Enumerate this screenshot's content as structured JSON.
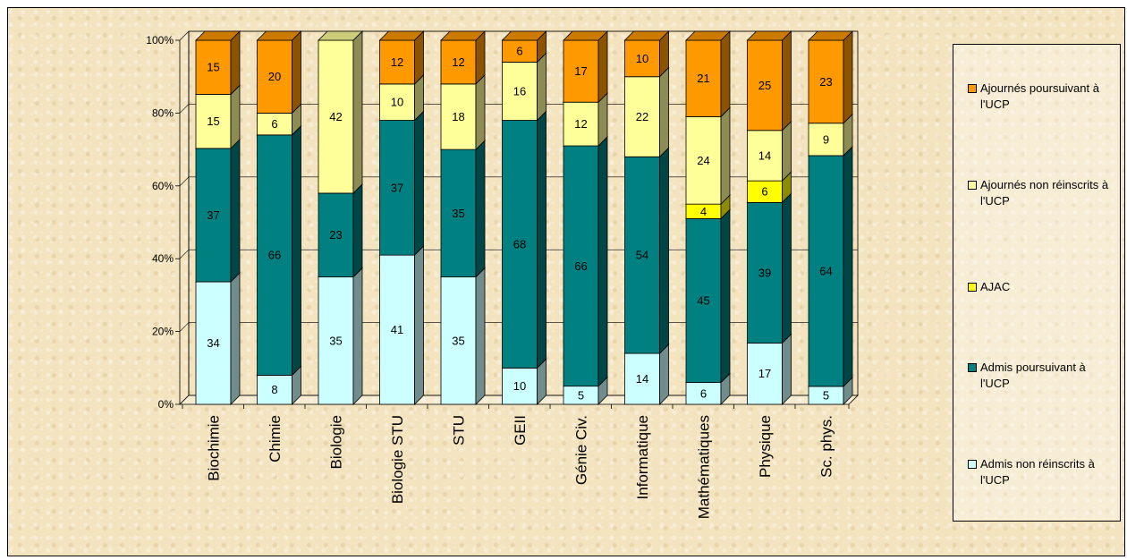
{
  "chart_data": {
    "type": "bar",
    "stacked": true,
    "normalized_percent": true,
    "three_d": true,
    "categories": [
      "Biochimie",
      "Chimie",
      "Biologie",
      "Biologie STU",
      "STU",
      "GEII",
      "Génie Civ.",
      "Informatique",
      "Mathématiques",
      "Physique",
      "Sc. phys."
    ],
    "series": [
      {
        "name": "Admis non réinscrits à l'UCP",
        "color": "#ccffff",
        "values": [
          34,
          8,
          35,
          41,
          35,
          10,
          5,
          14,
          6,
          17,
          5
        ]
      },
      {
        "name": "Admis poursuivant à l'UCP",
        "color": "#008080",
        "values": [
          37,
          66,
          23,
          37,
          35,
          68,
          66,
          54,
          45,
          39,
          64
        ]
      },
      {
        "name": "AJAC",
        "color": "#ffff00",
        "values": [
          0,
          0,
          0,
          0,
          0,
          0,
          0,
          0,
          4,
          6,
          0
        ]
      },
      {
        "name": "Ajournés non réinscrits à l'UCP",
        "color": "#ffff99",
        "values": [
          15,
          6,
          42,
          10,
          18,
          16,
          12,
          22,
          24,
          14,
          9
        ]
      },
      {
        "name": "Ajournés poursuivant à l'UCP",
        "color": "#ff9900",
        "values": [
          15,
          20,
          0,
          12,
          12,
          6,
          17,
          10,
          21,
          25,
          23
        ]
      }
    ],
    "y_ticks": [
      "0%",
      "20%",
      "40%",
      "60%",
      "80%",
      "100%"
    ],
    "ylim": [
      0,
      100
    ],
    "grid": true,
    "legend_position": "right",
    "legend_order": [
      4,
      3,
      2,
      1,
      0
    ]
  }
}
